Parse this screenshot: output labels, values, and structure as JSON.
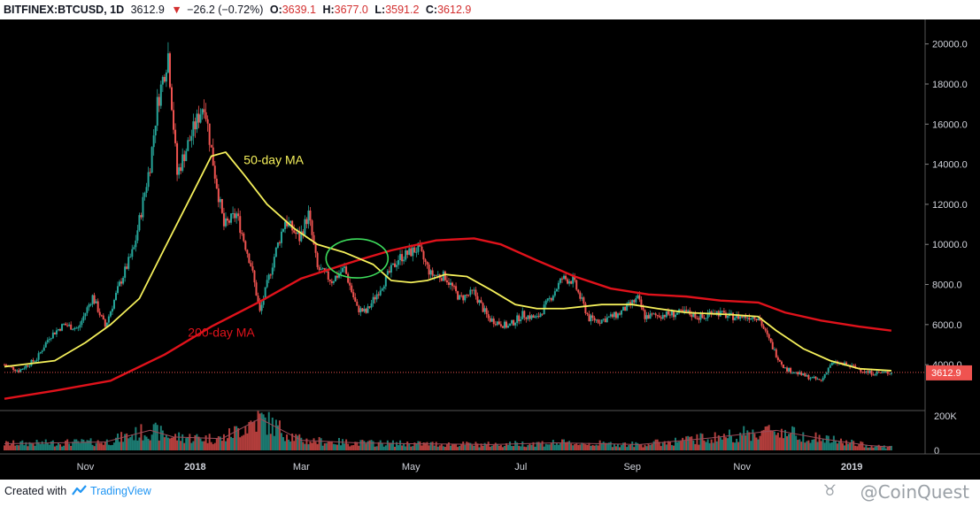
{
  "header": {
    "symbol": "BITFINEX:BTCUSD, 1D",
    "last": "3612.9",
    "change_arrow": "▼",
    "change": "−26.2 (−0.72%)",
    "o_label": "O:",
    "o_value": "3639.1",
    "h_label": "H:",
    "h_value": "3677.0",
    "l_label": "L:",
    "l_value": "3591.2",
    "c_label": "C:",
    "c_value": "3612.9"
  },
  "footer": {
    "created_with": "Created with",
    "brand": "TradingView",
    "watermark": "@CoinQuest",
    "watermark_icon": "bull-icon"
  },
  "colors": {
    "background": "#000000",
    "up": "#26a69a",
    "down": "#ef5350",
    "ma50": "#f5f05b",
    "ma200": "#e0121b",
    "annotation_circle": "#3ddc5c",
    "price_label": "#ef5350"
  },
  "chart_data": {
    "type": "line",
    "title": "",
    "x_tick_labels": [
      "Nov",
      "2018",
      "Mar",
      "May",
      "Jul",
      "Sep",
      "Nov",
      "2019"
    ],
    "x_tick_dates": [
      "2017-11-01",
      "2018-01-01",
      "2018-03-01",
      "2018-05-01",
      "2018-07-01",
      "2018-09-01",
      "2018-11-01",
      "2019-01-01"
    ],
    "x_range": [
      "2017-09-17",
      "2019-01-27"
    ],
    "price_ylim": [
      1800,
      21000
    ],
    "price_y_ticks": [
      "4000.0",
      "6000.0",
      "8000.0",
      "10000.0",
      "12000.0",
      "14000.0",
      "16000.0",
      "18000.0",
      "20000.0"
    ],
    "volume_ticks": [
      "200K",
      "0"
    ],
    "volume_ylim": [
      0,
      200000
    ],
    "last_price_label": "3612.9",
    "last_price": 3612.9,
    "grid": false,
    "annotations": [
      {
        "text": "50-day MA",
        "color": "#f5f05b",
        "at_date": "2018-01-28",
        "at_price": 14000
      },
      {
        "text": "200-day MA",
        "color": "#e0121b",
        "at_date": "2017-12-28",
        "at_price": 5400
      }
    ],
    "highlight_ellipse": {
      "center_date": "2018-04-01",
      "center_price": 9300,
      "color": "#3ddc5c"
    },
    "price_series": {
      "name": "BTCUSD",
      "points": [
        [
          "2017-09-17",
          4000
        ],
        [
          "2017-09-25",
          3700
        ],
        [
          "2017-10-05",
          4300
        ],
        [
          "2017-10-12",
          5400
        ],
        [
          "2017-10-20",
          6000
        ],
        [
          "2017-10-28",
          5800
        ],
        [
          "2017-11-05",
          7400
        ],
        [
          "2017-11-12",
          5900
        ],
        [
          "2017-11-20",
          8000
        ],
        [
          "2017-11-28",
          9800
        ],
        [
          "2017-12-07",
          14000
        ],
        [
          "2017-12-11",
          17000
        ],
        [
          "2017-12-17",
          19500
        ],
        [
          "2017-12-22",
          13500
        ],
        [
          "2017-12-28",
          15000
        ],
        [
          "2018-01-06",
          17100
        ],
        [
          "2018-01-12",
          13500
        ],
        [
          "2018-01-17",
          10900
        ],
        [
          "2018-01-24",
          11500
        ],
        [
          "2018-02-01",
          9000
        ],
        [
          "2018-02-06",
          6600
        ],
        [
          "2018-02-14",
          9400
        ],
        [
          "2018-02-20",
          11200
        ],
        [
          "2018-02-28",
          10300
        ],
        [
          "2018-03-05",
          11500
        ],
        [
          "2018-03-10",
          8800
        ],
        [
          "2018-03-18",
          8200
        ],
        [
          "2018-03-25",
          8800
        ],
        [
          "2018-04-01",
          6800
        ],
        [
          "2018-04-06",
          6600
        ],
        [
          "2018-04-15",
          8000
        ],
        [
          "2018-04-24",
          9300
        ],
        [
          "2018-05-05",
          9800
        ],
        [
          "2018-05-12",
          8500
        ],
        [
          "2018-05-20",
          8400
        ],
        [
          "2018-05-28",
          7300
        ],
        [
          "2018-06-05",
          7600
        ],
        [
          "2018-06-13",
          6300
        ],
        [
          "2018-06-24",
          5900
        ],
        [
          "2018-07-02",
          6500
        ],
        [
          "2018-07-10",
          6300
        ],
        [
          "2018-07-18",
          7400
        ],
        [
          "2018-07-24",
          8300
        ],
        [
          "2018-07-30",
          8200
        ],
        [
          "2018-08-08",
          6300
        ],
        [
          "2018-08-14",
          6200
        ],
        [
          "2018-08-24",
          6500
        ],
        [
          "2018-09-04",
          7300
        ],
        [
          "2018-09-08",
          6400
        ],
        [
          "2018-09-20",
          6500
        ],
        [
          "2018-10-01",
          6600
        ],
        [
          "2018-10-11",
          6300
        ],
        [
          "2018-10-15",
          6700
        ],
        [
          "2018-10-25",
          6400
        ],
        [
          "2018-11-10",
          6400
        ],
        [
          "2018-11-14",
          5600
        ],
        [
          "2018-11-20",
          4500
        ],
        [
          "2018-11-25",
          3800
        ],
        [
          "2018-12-07",
          3400
        ],
        [
          "2018-12-15",
          3200
        ],
        [
          "2018-12-20",
          4000
        ],
        [
          "2018-12-24",
          4100
        ],
        [
          "2019-01-05",
          3800
        ],
        [
          "2019-01-10",
          3600
        ],
        [
          "2019-01-20",
          3600
        ],
        [
          "2019-01-23",
          3612.9
        ]
      ]
    },
    "ma50_series": {
      "name": "50-day MA",
      "points": [
        [
          "2017-09-17",
          3900
        ],
        [
          "2017-10-15",
          4200
        ],
        [
          "2017-11-01",
          5100
        ],
        [
          "2017-11-15",
          6000
        ],
        [
          "2017-12-01",
          7300
        ],
        [
          "2017-12-15",
          9800
        ],
        [
          "2018-01-01",
          12800
        ],
        [
          "2018-01-10",
          14400
        ],
        [
          "2018-01-18",
          14600
        ],
        [
          "2018-01-28",
          13500
        ],
        [
          "2018-02-10",
          12000
        ],
        [
          "2018-02-25",
          10800
        ],
        [
          "2018-03-10",
          10000
        ],
        [
          "2018-03-25",
          9600
        ],
        [
          "2018-04-10",
          9000
        ],
        [
          "2018-04-20",
          8200
        ],
        [
          "2018-05-01",
          8100
        ],
        [
          "2018-05-10",
          8200
        ],
        [
          "2018-05-20",
          8500
        ],
        [
          "2018-06-01",
          8400
        ],
        [
          "2018-06-15",
          7700
        ],
        [
          "2018-06-28",
          7000
        ],
        [
          "2018-07-10",
          6800
        ],
        [
          "2018-07-25",
          6800
        ],
        [
          "2018-08-15",
          7000
        ],
        [
          "2018-09-01",
          7000
        ],
        [
          "2018-09-15",
          6800
        ],
        [
          "2018-10-01",
          6600
        ],
        [
          "2018-10-25",
          6500
        ],
        [
          "2018-11-10",
          6400
        ],
        [
          "2018-11-20",
          5700
        ],
        [
          "2018-12-05",
          4800
        ],
        [
          "2018-12-20",
          4200
        ],
        [
          "2019-01-05",
          3800
        ],
        [
          "2019-01-23",
          3700
        ]
      ]
    },
    "ma200_series": {
      "name": "200-day MA",
      "points": [
        [
          "2017-09-17",
          2300
        ],
        [
          "2017-10-15",
          2700
        ],
        [
          "2017-11-15",
          3200
        ],
        [
          "2017-12-15",
          4500
        ],
        [
          "2018-01-10",
          5900
        ],
        [
          "2018-02-05",
          7100
        ],
        [
          "2018-03-01",
          8300
        ],
        [
          "2018-04-01",
          9200
        ],
        [
          "2018-04-20",
          9700
        ],
        [
          "2018-05-15",
          10200
        ],
        [
          "2018-06-05",
          10300
        ],
        [
          "2018-06-20",
          10000
        ],
        [
          "2018-07-10",
          9200
        ],
        [
          "2018-07-31",
          8400
        ],
        [
          "2018-08-20",
          7800
        ],
        [
          "2018-09-10",
          7500
        ],
        [
          "2018-10-01",
          7400
        ],
        [
          "2018-10-20",
          7200
        ],
        [
          "2018-11-10",
          7100
        ],
        [
          "2018-11-25",
          6600
        ],
        [
          "2018-12-15",
          6200
        ],
        [
          "2019-01-05",
          5900
        ],
        [
          "2019-01-23",
          5700
        ]
      ]
    },
    "volume_series": {
      "name": "Volume",
      "points": [
        [
          "2017-09-17",
          40000
        ],
        [
          "2017-10-15",
          45000
        ],
        [
          "2017-11-12",
          50000
        ],
        [
          "2017-12-07",
          120000
        ],
        [
          "2017-12-20",
          80000
        ],
        [
          "2018-01-16",
          70000
        ],
        [
          "2018-02-06",
          190000
        ],
        [
          "2018-03-01",
          60000
        ],
        [
          "2018-04-01",
          45000
        ],
        [
          "2018-05-01",
          40000
        ],
        [
          "2018-06-15",
          35000
        ],
        [
          "2018-07-20",
          45000
        ],
        [
          "2018-08-15",
          40000
        ],
        [
          "2018-09-05",
          35000
        ],
        [
          "2018-10-15",
          75000
        ],
        [
          "2018-11-20",
          120000
        ],
        [
          "2018-12-15",
          70000
        ],
        [
          "2019-01-10",
          30000
        ],
        [
          "2019-01-23",
          20000
        ]
      ]
    }
  }
}
